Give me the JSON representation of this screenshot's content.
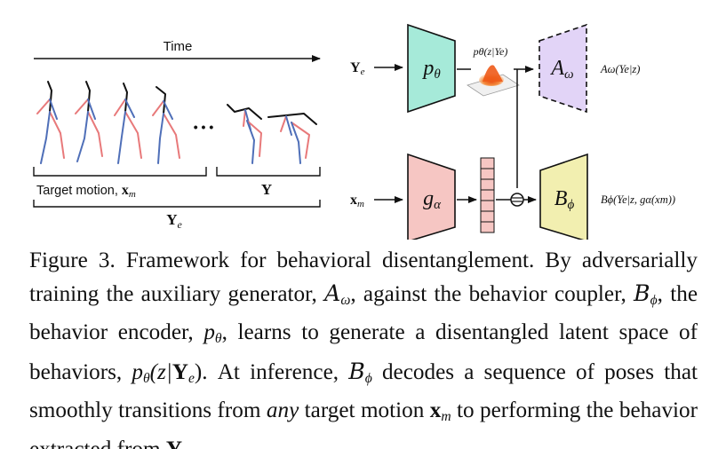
{
  "figure": {
    "time_label": "Time",
    "target_motion_label": "Target motion, ",
    "xm_label": "x",
    "xm_sub": "m",
    "y_label": "Y",
    "ye_label": "Y",
    "ye_sub": "e",
    "ellipsis": "• • •",
    "p_theta": "p",
    "p_theta_sub": "θ",
    "latent_label": "pθ(z|Ye)",
    "a_omega": "A",
    "a_omega_sub": "ω",
    "a_output": "Aω(Ye|z)",
    "g_alpha": "g",
    "g_alpha_sub": "α",
    "b_phi": "B",
    "b_phi_sub": "ϕ",
    "b_output": "Bϕ(Ye|z, gα(xm))",
    "concat_symbol": "⊖",
    "colors": {
      "encoder": "#a6ead9",
      "aux_gen": "#e2d4f7",
      "coupler": "#f2efb0",
      "target_enc": "#f6c6c3",
      "pose_red": "#e8797a",
      "pose_blue": "#4f6fb8"
    }
  },
  "caption": {
    "label": "Figure 3.",
    "t1": " Framework for behavioral disentanglement. By adversarially training the auxiliary generator, ",
    "a": "A",
    "a_sub": "ω",
    "t2": ", against the behavior coupler, ",
    "b": "B",
    "b_sub": "ϕ",
    "t3": ", the behavior encoder, ",
    "p": "p",
    "p_sub": "θ",
    "t4": ", learns to generate a disentangled latent space of behaviors, ",
    "p2": "p",
    "p2_sub": "θ",
    "t5a": "(z|",
    "t5b": "Y",
    "t5c": "e",
    "t5d": "). At inference, ",
    "b2": "B",
    "b2_sub": "ϕ",
    "t6": " decodes a sequence of poses that smoothly transitions from ",
    "any": "any",
    "t7": " target motion ",
    "xm": "x",
    "xm_sub": "m",
    "t8": " to performing the behavior extracted from ",
    "y": "Y",
    "t9": "."
  }
}
